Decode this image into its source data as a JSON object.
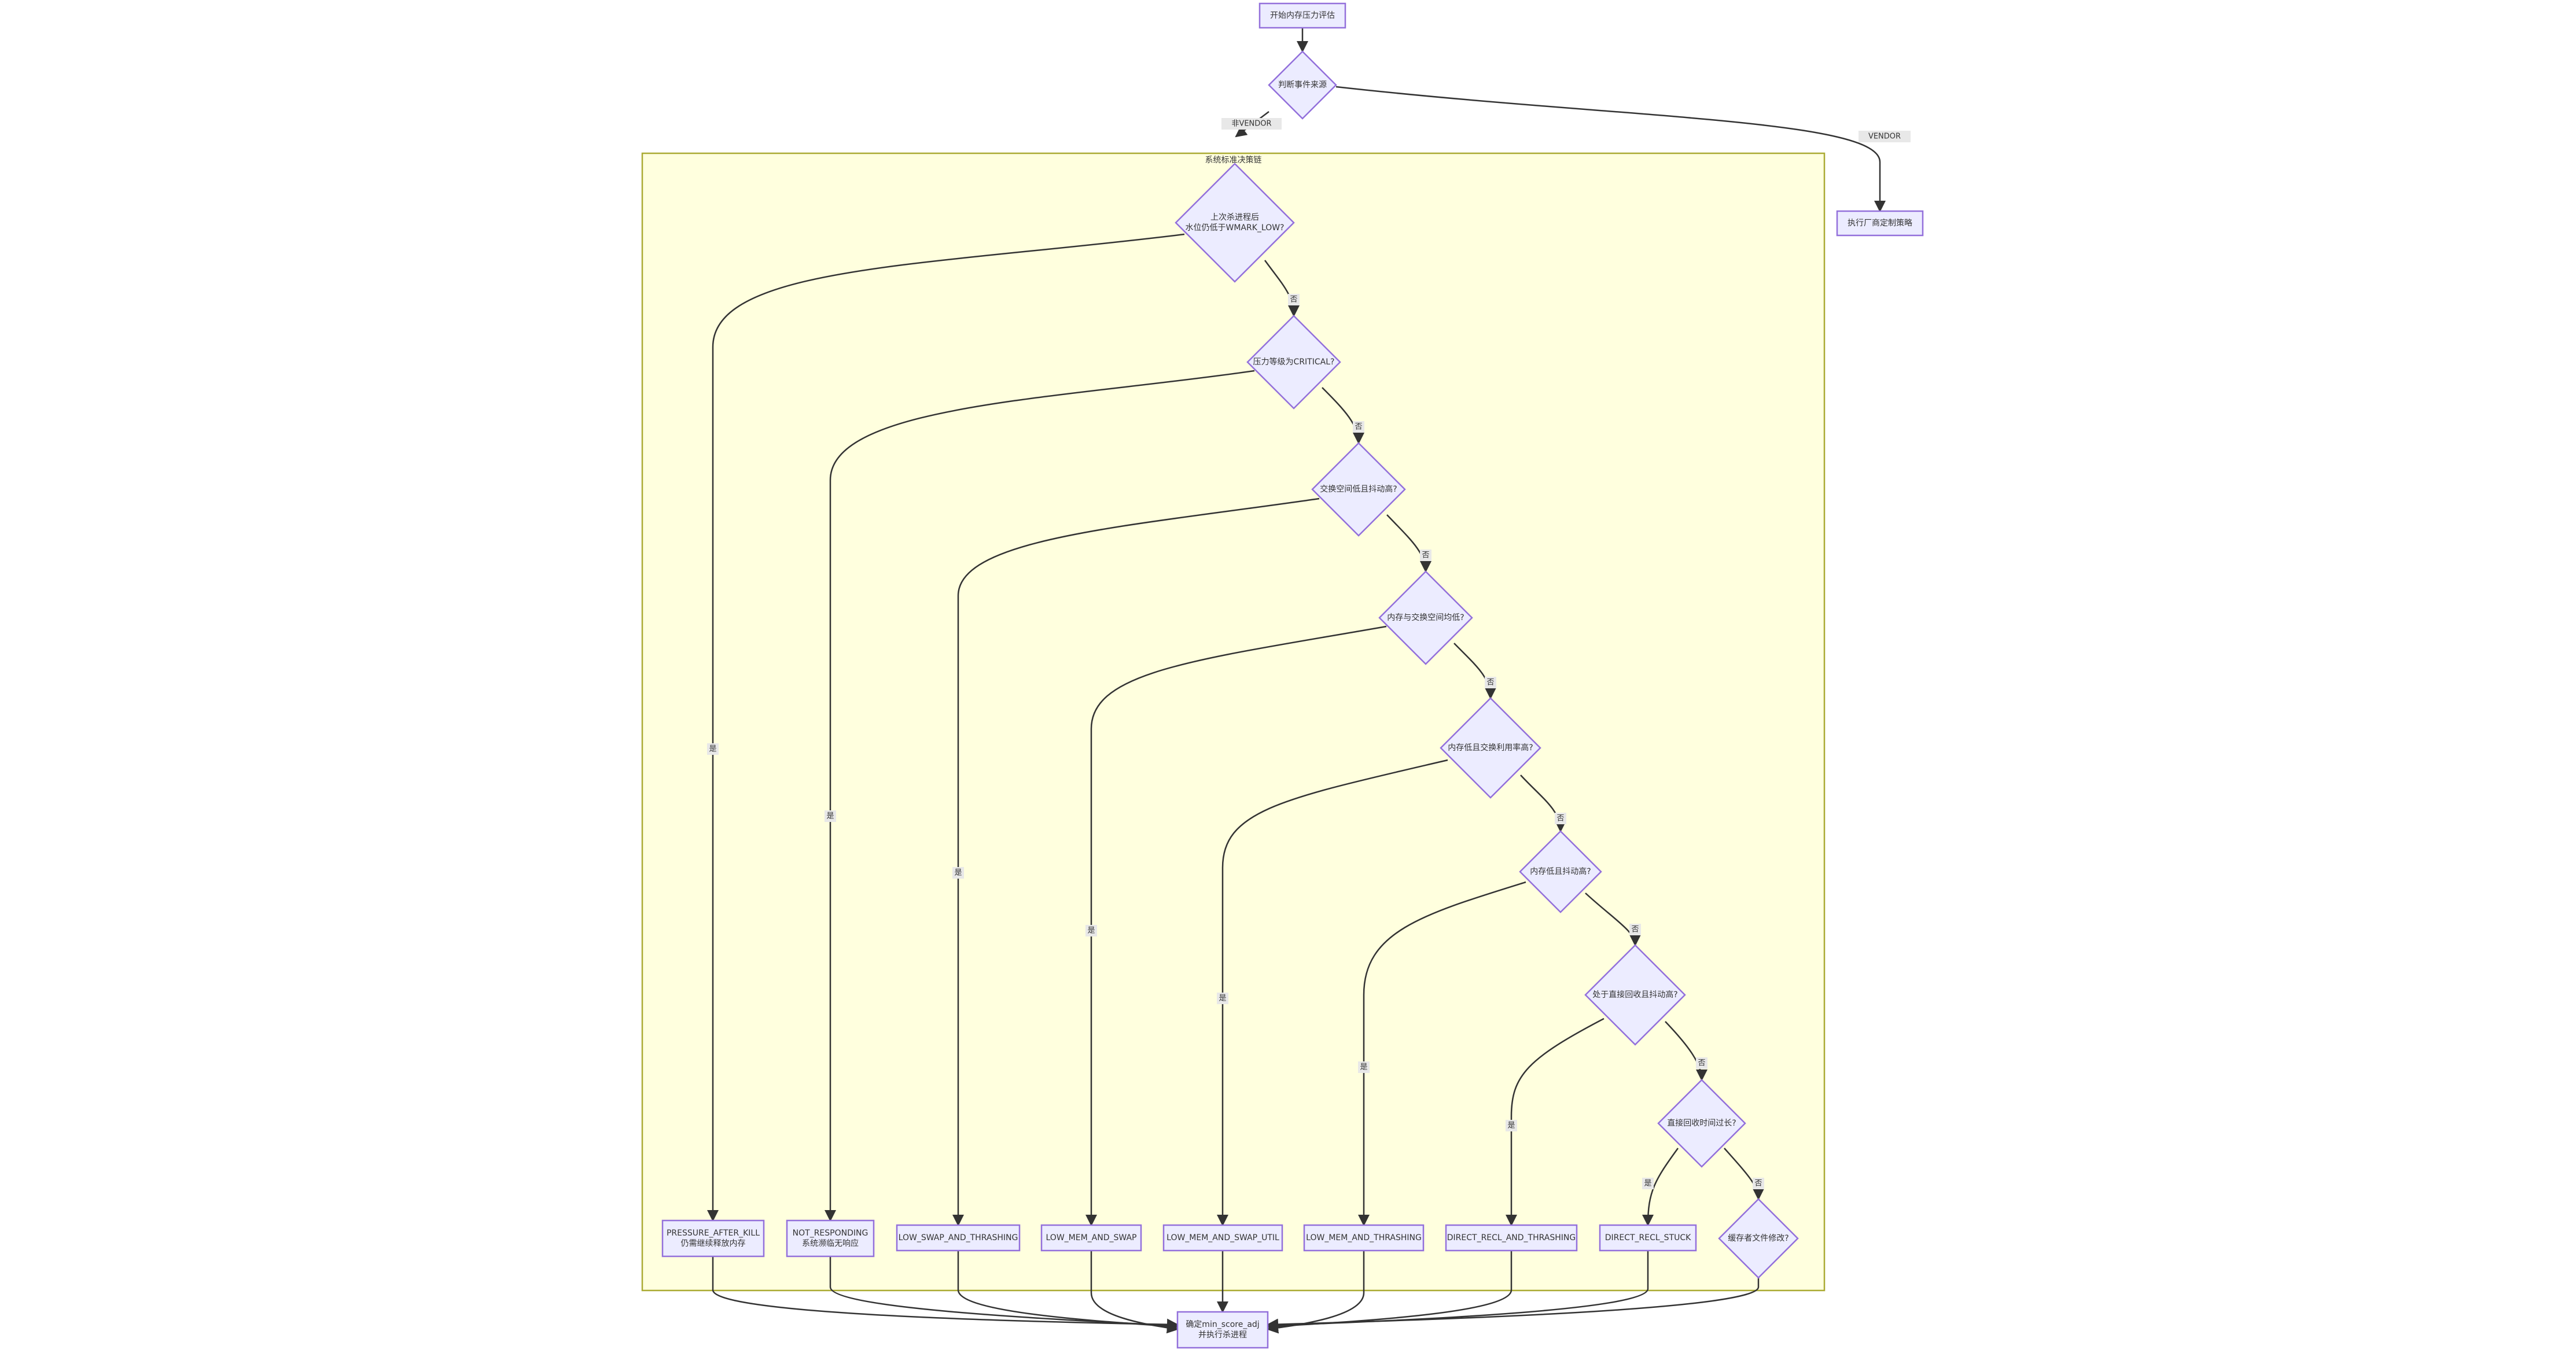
{
  "colors": {
    "node_fill": "#ececff",
    "node_stroke": "#9370db",
    "cluster_fill": "#ffffde",
    "cluster_stroke": "#aaaa33",
    "edge": "#333333",
    "edge_label_bg": "#e8e8e8"
  },
  "cluster": {
    "title": "系统标准决策链"
  },
  "nodes": {
    "start": [
      "开始内存压力评估"
    ],
    "source": [
      "判断事件来源"
    ],
    "vendor": [
      "执行厂商定制策略"
    ],
    "d1": [
      "上次杀进程后",
      "水位仍低于WMARK_LOW?"
    ],
    "d2": [
      "压力等级为CRITICAL?"
    ],
    "d3": [
      "交换空间低且抖动高?"
    ],
    "d4": [
      "内存与交换空间均低?"
    ],
    "d5": [
      "内存低且交换利用率高?"
    ],
    "d6": [
      "内存低且抖动高?"
    ],
    "d7": [
      "处于直接回收且抖动高?"
    ],
    "d8": [
      "直接回收时间过长?"
    ],
    "d9": [
      "缓存者文件修改?"
    ],
    "r1": [
      "PRESSURE_AFTER_KILL",
      "仍需继续释放内存"
    ],
    "r2": [
      "NOT_RESPONDING",
      "系统濒临无响应"
    ],
    "r3": [
      "LOW_SWAP_AND_THRASHING"
    ],
    "r4": [
      "LOW_MEM_AND_SWAP"
    ],
    "r5": [
      "LOW_MEM_AND_SWAP_UTIL"
    ],
    "r6": [
      "LOW_MEM_AND_THRASHING"
    ],
    "r7": [
      "DIRECT_RECL_AND_THRASHING"
    ],
    "r8": [
      "DIRECT_RECL_STUCK"
    ],
    "end": [
      "确定min_score_adj",
      "并执行杀进程"
    ]
  },
  "edge_labels": {
    "non_vendor": "非VENDOR",
    "vendor": "VENDOR",
    "yes": "是",
    "no": "否"
  }
}
